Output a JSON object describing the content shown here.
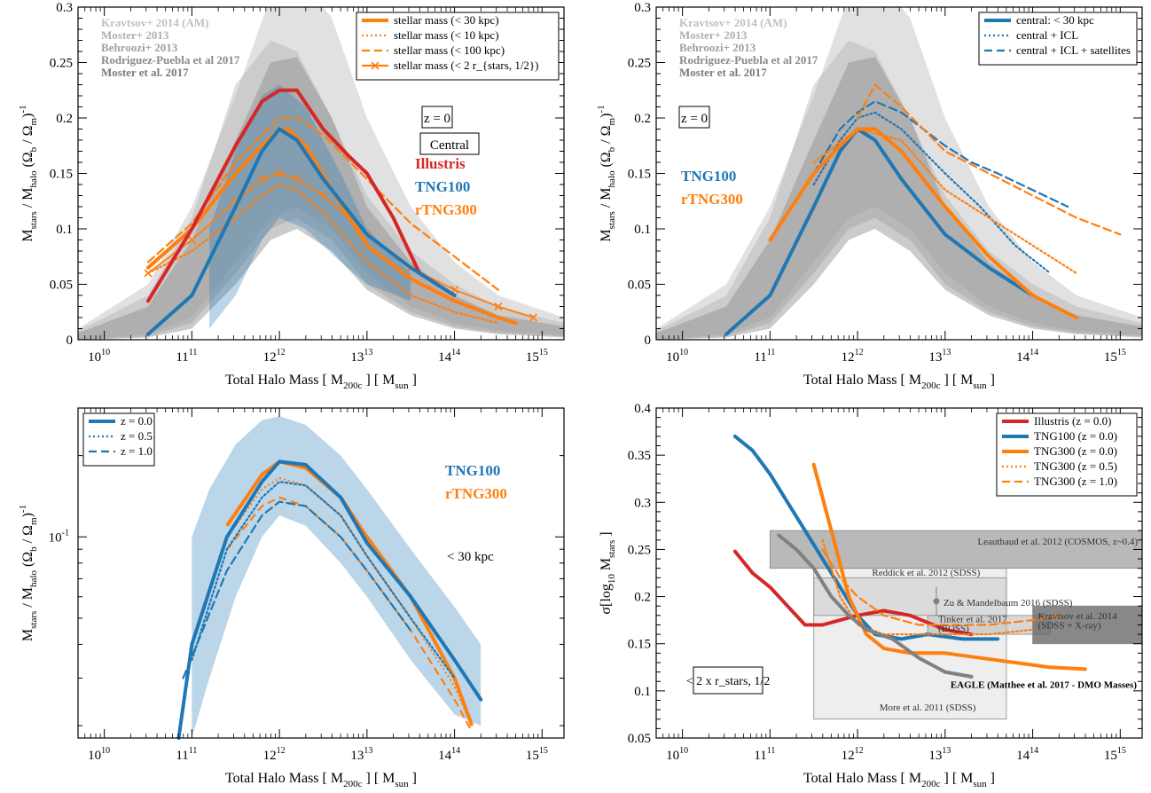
{
  "chart_data": [
    {
      "id": "tl",
      "type": "line",
      "xlabel": "Total Halo Mass [ M_200c ] [ M_sun ]",
      "ylabel": "M_stars / M_halo (Ω_b / Ω_m)^-1",
      "xlim": [
        9.7,
        15.25
      ],
      "ylim": [
        0,
        0.3
      ],
      "xscale": "log",
      "x_ticks": [
        "10",
        "11",
        "12",
        "13",
        "14",
        "15"
      ],
      "y_ticks": [
        "0",
        "0.05",
        "0.1",
        "0.15",
        "0.2",
        "0.25",
        "0.3"
      ],
      "grid": false,
      "legend_position": "top-right",
      "models_labels": [
        "Kravtsov+ 2014 (AM)",
        "Moster+ 2013",
        "Behroozi+ 2013",
        "Rodriguez-Puebla et al 2017",
        "Moster et al. 2017"
      ],
      "annotations": [
        "z = 0",
        "Central"
      ],
      "sim_labels": [
        {
          "text": "Illustris",
          "color": "#d62728"
        },
        {
          "text": "TNG100",
          "color": "#1f77b4"
        },
        {
          "text": "rTNG300",
          "color": "#ff7f0e"
        }
      ],
      "series": [
        {
          "name": "stellar mass (< 30 kpc)",
          "color": "#ff7f0e",
          "style": "solid",
          "x": [
            10.5,
            11.0,
            11.5,
            11.8,
            12.0,
            12.1,
            12.3,
            12.6,
            13.0,
            13.5,
            14.0,
            14.5,
            14.7
          ],
          "y": [
            0.065,
            0.1,
            0.15,
            0.175,
            0.19,
            0.19,
            0.175,
            0.135,
            0.085,
            0.055,
            0.035,
            0.02,
            0.015
          ]
        },
        {
          "name": "stellar mass (< 10 kpc)",
          "color": "#ff7f0e",
          "style": "dotted",
          "x": [
            10.5,
            11.0,
            11.5,
            11.8,
            12.0,
            12.2,
            12.5,
            13.0,
            13.5,
            14.0,
            14.5
          ],
          "y": [
            0.06,
            0.08,
            0.11,
            0.13,
            0.14,
            0.135,
            0.115,
            0.07,
            0.04,
            0.025,
            0.015
          ]
        },
        {
          "name": "stellar mass (< 100 kpc)",
          "color": "#ff7f0e",
          "style": "dashed",
          "x": [
            10.5,
            11.0,
            11.5,
            11.8,
            12.0,
            12.2,
            12.5,
            13.0,
            13.5,
            14.0,
            14.5
          ],
          "y": [
            0.07,
            0.105,
            0.16,
            0.185,
            0.2,
            0.2,
            0.185,
            0.145,
            0.105,
            0.075,
            0.045
          ]
        },
        {
          "name": "stellar mass (< 2 r_{stars, 1/2})",
          "color": "#ff7f0e",
          "style": "cross",
          "x": [
            10.5,
            11.0,
            11.5,
            11.8,
            12.0,
            12.2,
            12.5,
            13.0,
            13.5,
            14.0,
            14.5,
            14.9
          ],
          "y": [
            0.06,
            0.09,
            0.125,
            0.145,
            0.15,
            0.145,
            0.13,
            0.095,
            0.065,
            0.045,
            0.03,
            0.02
          ]
        },
        {
          "name": "Illustris",
          "color": "#d62728",
          "style": "solid",
          "x": [
            10.5,
            11.0,
            11.5,
            11.8,
            12.0,
            12.2,
            12.5,
            12.8,
            13.0,
            13.3,
            13.6,
            14.0
          ],
          "y": [
            0.035,
            0.1,
            0.175,
            0.215,
            0.225,
            0.225,
            0.19,
            0.165,
            0.15,
            0.11,
            0.06,
            0.04
          ]
        },
        {
          "name": "TNG100",
          "color": "#1f77b4",
          "style": "solid",
          "x": [
            10.5,
            11.0,
            11.5,
            11.8,
            12.0,
            12.2,
            12.5,
            13.0,
            13.5,
            14.0
          ],
          "y": [
            0.005,
            0.04,
            0.12,
            0.17,
            0.19,
            0.18,
            0.145,
            0.095,
            0.065,
            0.04
          ]
        }
      ]
    },
    {
      "id": "tr",
      "type": "line",
      "xlabel": "Total Halo Mass [ M_200c ] [ M_sun ]",
      "ylabel": "M_stars / M_halo (Ω_b / Ω_m)^-1",
      "xlim": [
        9.7,
        15.25
      ],
      "ylim": [
        0,
        0.3
      ],
      "xscale": "log",
      "x_ticks": [
        "10",
        "11",
        "12",
        "13",
        "14",
        "15"
      ],
      "y_ticks": [
        "0",
        "0.05",
        "0.1",
        "0.15",
        "0.2",
        "0.25",
        "0.3"
      ],
      "grid": false,
      "legend_position": "top-right",
      "models_labels": [
        "Kravtsov+ 2014 (AM)",
        "Moster+ 2013",
        "Behroozi+ 2013",
        "Rodriguez-Puebla et al 2017",
        "Moster et al. 2017"
      ],
      "annotations": [
        "z = 0"
      ],
      "sim_labels": [
        {
          "text": "TNG100",
          "color": "#1f77b4"
        },
        {
          "text": "rTNG300",
          "color": "#ff7f0e"
        }
      ],
      "series": [
        {
          "name": "central: < 30 kpc",
          "color": "#1f77b4",
          "style": "solid",
          "x": [
            10.5,
            11.0,
            11.5,
            11.8,
            12.0,
            12.2,
            12.5,
            13.0,
            13.5,
            14.0
          ],
          "y": [
            0.005,
            0.04,
            0.12,
            0.17,
            0.19,
            0.18,
            0.145,
            0.095,
            0.065,
            0.04
          ]
        },
        {
          "name": "central + ICL",
          "color": "#1f77b4",
          "style": "dotted",
          "x": [
            11.5,
            11.8,
            12.0,
            12.2,
            12.5,
            13.0,
            13.4,
            13.8,
            14.2
          ],
          "y": [
            0.14,
            0.18,
            0.2,
            0.205,
            0.19,
            0.15,
            0.12,
            0.085,
            0.06
          ]
        },
        {
          "name": "central + ICL + satellites",
          "color": "#1f77b4",
          "style": "dashed",
          "x": [
            11.5,
            11.8,
            12.0,
            12.2,
            12.5,
            13.0,
            13.3,
            13.6,
            14.0,
            14.4
          ],
          "y": [
            0.15,
            0.19,
            0.205,
            0.215,
            0.205,
            0.175,
            0.16,
            0.15,
            0.135,
            0.12
          ]
        },
        {
          "name": "rTNG300 < 30 kpc",
          "color": "#ff7f0e",
          "style": "solid",
          "x": [
            11.0,
            11.5,
            11.8,
            12.0,
            12.2,
            12.5,
            13.0,
            13.5,
            14.0,
            14.5
          ],
          "y": [
            0.09,
            0.15,
            0.175,
            0.19,
            0.19,
            0.17,
            0.12,
            0.075,
            0.04,
            0.02
          ]
        },
        {
          "name": "rTNG300 + ICL",
          "color": "#ff7f0e",
          "style": "dotted",
          "x": [
            11.5,
            12.0,
            12.5,
            13.0,
            13.5,
            14.0,
            14.5
          ],
          "y": [
            0.16,
            0.19,
            0.18,
            0.135,
            0.11,
            0.085,
            0.06
          ]
        },
        {
          "name": "rTNG300 + ICL + sat",
          "color": "#ff7f0e",
          "style": "dashed",
          "x": [
            12.0,
            12.2,
            12.5,
            13.0,
            13.5,
            14.0,
            14.5,
            15.0
          ],
          "y": [
            0.2,
            0.23,
            0.21,
            0.17,
            0.15,
            0.13,
            0.11,
            0.095
          ]
        }
      ]
    },
    {
      "id": "bl",
      "type": "line",
      "xlabel": "Total Halo Mass [ M_200c ] [ M_sun ]",
      "ylabel": "M_stars / M_halo (Ω_b / Ω_m)^-1",
      "xlim": [
        9.7,
        15.25
      ],
      "ylim": [
        0.018,
        0.3
      ],
      "xscale": "log",
      "yscale": "log",
      "x_ticks": [
        "10",
        "11",
        "12",
        "13",
        "14",
        "15"
      ],
      "y_ticks": [
        "10^-1"
      ],
      "grid": false,
      "legend_position": "top-left",
      "annotations": [
        "< 30 kpc"
      ],
      "sim_labels": [
        {
          "text": "TNG100",
          "color": "#1f77b4"
        },
        {
          "text": "rTNG300",
          "color": "#ff7f0e"
        }
      ],
      "series": [
        {
          "name": "z = 0.0",
          "color": "#1f77b4",
          "style": "solid",
          "x": [
            10.85,
            11.0,
            11.4,
            11.8,
            12.0,
            12.3,
            12.7,
            13.0,
            13.5,
            14.0,
            14.3
          ],
          "y": [
            0.018,
            0.04,
            0.1,
            0.16,
            0.19,
            0.185,
            0.14,
            0.095,
            0.06,
            0.035,
            0.025
          ]
        },
        {
          "name": "z = 0.5",
          "color": "#1f77b4",
          "style": "dotted",
          "x": [
            11.0,
            11.4,
            11.8,
            12.0,
            12.3,
            12.7,
            13.0,
            13.5,
            14.0
          ],
          "y": [
            0.035,
            0.09,
            0.14,
            0.16,
            0.155,
            0.12,
            0.085,
            0.05,
            0.03
          ]
        },
        {
          "name": "z = 1.0",
          "color": "#1f77b4",
          "style": "dashed",
          "x": [
            10.9,
            11.4,
            11.8,
            12.0,
            12.3,
            12.7,
            13.0,
            13.5
          ],
          "y": [
            0.03,
            0.075,
            0.12,
            0.135,
            0.13,
            0.1,
            0.075,
            0.045
          ]
        }
      ]
    },
    {
      "id": "br",
      "type": "line",
      "xlabel": "Total Halo Mass [ M_200c ] [ M_sun ]",
      "ylabel": "σ[log_10 M_stars ]",
      "xlim": [
        9.7,
        15.25
      ],
      "ylim": [
        0.05,
        0.4
      ],
      "xscale": "log",
      "x_ticks": [
        "10",
        "11",
        "12",
        "13",
        "14",
        "15"
      ],
      "y_ticks": [
        "0.05",
        "0.1",
        "0.15",
        "0.2",
        "0.25",
        "0.3",
        "0.35",
        "0.4"
      ],
      "grid": false,
      "legend_position": "top-right",
      "annotations": [
        "< 2 x r_stars, 1/2",
        "EAGLE (Matthee et al. 2017 - DMO Masses)"
      ],
      "observations": [
        {
          "text": "Leauthaud et al. 2012 (COSMOS, z~0.4)",
          "x": [
            11.0,
            15.3
          ],
          "y": [
            0.23,
            0.27
          ]
        },
        {
          "text": "Reddick et al. 2012 (SDSS)",
          "x": [
            11.5,
            13.7
          ],
          "y": [
            0.18,
            0.22
          ]
        },
        {
          "text": "Zu & Mandelbaum 2016 (SDSS)",
          "x": [
            12.9,
            12.9
          ],
          "y": [
            0.195,
            0.195
          ]
        },
        {
          "text": "Tinker et al. 2017",
          "x": [
            12.8,
            14.2
          ],
          "y": [
            0.16,
            0.18
          ]
        },
        {
          "text": "(BOSS)",
          "x": [
            12.8,
            14.2
          ],
          "y": [
            0.16,
            0.18
          ]
        },
        {
          "text": "Kravtsov et al. 2014",
          "x": [
            14.0,
            15.3
          ],
          "y": [
            0.15,
            0.19
          ]
        },
        {
          "text": "(SDSS + X-ray)",
          "x": [
            14.0,
            15.3
          ],
          "y": [
            0.15,
            0.19
          ]
        },
        {
          "text": "More et al. 2011 (SDSS)",
          "x": [
            11.5,
            13.7
          ],
          "y": [
            0.07,
            0.23
          ]
        }
      ],
      "series": [
        {
          "name": "Illustris (z = 0.0)",
          "color": "#d62728",
          "style": "solid",
          "x": [
            10.6,
            10.8,
            11.0,
            11.2,
            11.4,
            11.6,
            11.8,
            12.0,
            12.3,
            12.6,
            13.0,
            13.3
          ],
          "y": [
            0.248,
            0.225,
            0.21,
            0.19,
            0.17,
            0.17,
            0.175,
            0.18,
            0.185,
            0.18,
            0.165,
            0.16
          ]
        },
        {
          "name": "TNG100 (z = 0.0)",
          "color": "#1f77b4",
          "style": "solid",
          "x": [
            10.6,
            10.8,
            11.0,
            11.2,
            11.4,
            11.6,
            11.8,
            12.0,
            12.2,
            12.5,
            12.8,
            13.2,
            13.6
          ],
          "y": [
            0.37,
            0.355,
            0.33,
            0.3,
            0.27,
            0.24,
            0.21,
            0.18,
            0.16,
            0.155,
            0.16,
            0.155,
            0.155
          ]
        },
        {
          "name": "TNG300 (z = 0.0)",
          "color": "#ff7f0e",
          "style": "solid",
          "x": [
            11.5,
            11.7,
            11.9,
            12.1,
            12.3,
            12.6,
            13.0,
            13.4,
            13.8,
            14.2,
            14.6
          ],
          "y": [
            0.34,
            0.27,
            0.2,
            0.16,
            0.145,
            0.14,
            0.14,
            0.135,
            0.13,
            0.125,
            0.123
          ]
        },
        {
          "name": "TNG300 (z = 0.5)",
          "color": "#ff7f0e",
          "style": "dotted",
          "x": [
            11.6,
            11.8,
            12.0,
            12.3,
            12.7,
            13.0,
            13.5,
            14.0
          ],
          "y": [
            0.26,
            0.2,
            0.17,
            0.16,
            0.16,
            0.16,
            0.16,
            0.165
          ]
        },
        {
          "name": "TNG300 (z = 1.0)",
          "color": "#ff7f0e",
          "style": "dashed",
          "x": [
            11.6,
            11.8,
            12.0,
            12.3,
            12.7,
            13.0,
            13.5,
            14.0,
            14.3
          ],
          "y": [
            0.25,
            0.22,
            0.2,
            0.18,
            0.17,
            0.17,
            0.17,
            0.175,
            0.18
          ]
        },
        {
          "name": "EAGLE",
          "color": "#808080",
          "style": "solid",
          "x": [
            11.1,
            11.3,
            11.5,
            11.7,
            11.9,
            12.1,
            12.4,
            12.7,
            13.0,
            13.3
          ],
          "y": [
            0.265,
            0.25,
            0.23,
            0.2,
            0.18,
            0.165,
            0.155,
            0.135,
            0.12,
            0.115
          ]
        }
      ]
    }
  ]
}
